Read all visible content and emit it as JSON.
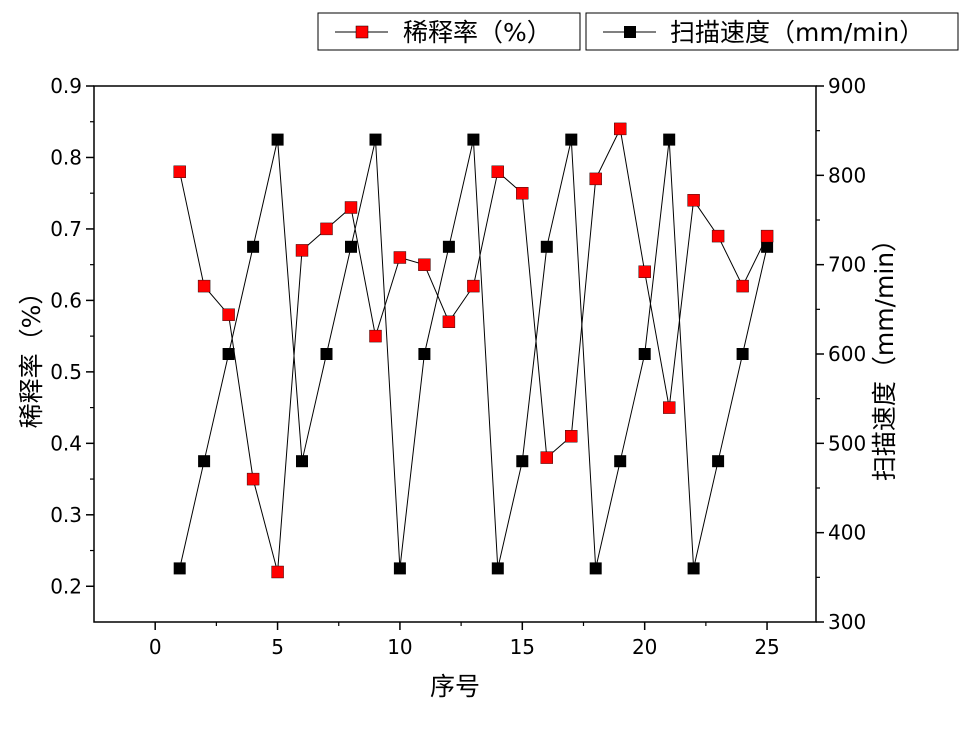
{
  "chart_data": {
    "type": "line",
    "x": [
      1,
      2,
      3,
      4,
      5,
      6,
      7,
      8,
      9,
      10,
      11,
      12,
      13,
      14,
      15,
      16,
      17,
      18,
      19,
      20,
      21,
      22,
      23,
      24,
      25
    ],
    "xlabel": "序号",
    "xlim": [
      -2.5,
      27
    ],
    "xticks": [
      0,
      5,
      10,
      15,
      20,
      25
    ],
    "y_left": {
      "label": "稀释率（%）",
      "lim": [
        0.15,
        0.9
      ],
      "ticks": [
        0.2,
        0.3,
        0.4,
        0.5,
        0.6,
        0.7,
        0.8,
        0.9
      ]
    },
    "y_right": {
      "label": "扫描速度（mm/min）",
      "lim": [
        300,
        900
      ],
      "ticks": [
        300,
        400,
        500,
        600,
        700,
        800,
        900
      ]
    },
    "series": [
      {
        "name": "稀释率（%）",
        "axis": "left",
        "color": "#ff0000",
        "marker": "square",
        "values": [
          0.78,
          0.62,
          0.58,
          0.35,
          0.22,
          0.67,
          0.7,
          0.73,
          0.55,
          0.66,
          0.65,
          0.57,
          0.62,
          0.78,
          0.75,
          0.38,
          0.41,
          0.77,
          0.84,
          0.64,
          0.45,
          0.74,
          0.69,
          0.62,
          0.69
        ]
      },
      {
        "name": "扫描速度（mm/min）",
        "axis": "right",
        "color": "#000000",
        "marker": "square",
        "values": [
          360,
          480,
          600,
          720,
          840,
          480,
          600,
          720,
          840,
          360,
          600,
          720,
          840,
          360,
          480,
          720,
          840,
          360,
          480,
          600,
          840,
          360,
          480,
          600,
          720
        ]
      }
    ],
    "legend": "top-right, horizontal",
    "grid": false
  }
}
